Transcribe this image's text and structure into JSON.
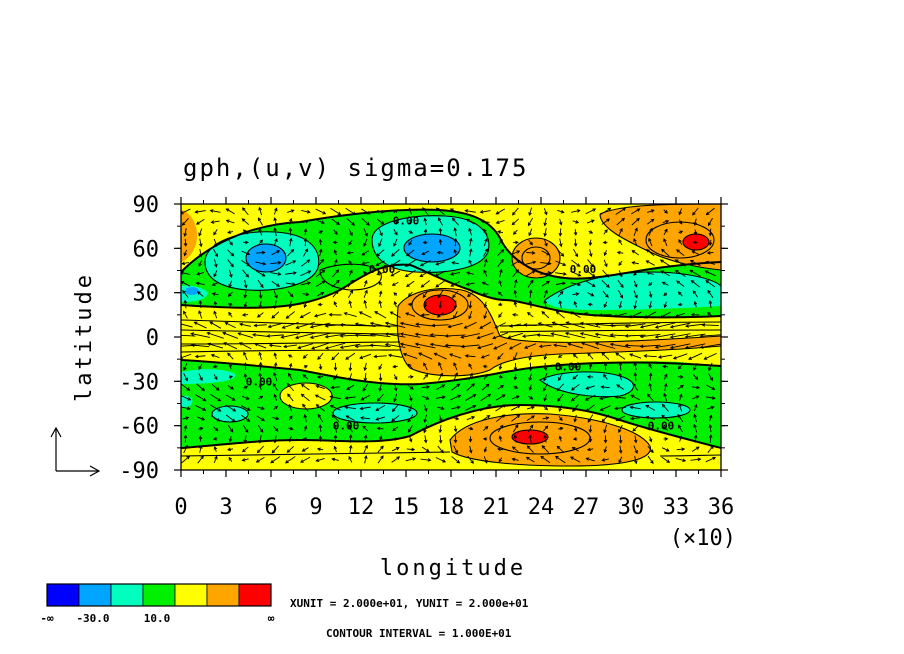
{
  "chart_data": {
    "type": "heatmap",
    "title": "gph,(u,v) sigma=0.175",
    "xlabel": "longitude",
    "ylabel": "latitude",
    "x_multiplier_label": "(×10)",
    "xticks": [
      0,
      3,
      6,
      9,
      12,
      15,
      18,
      21,
      24,
      27,
      30,
      33,
      36
    ],
    "yticks": [
      90,
      60,
      30,
      0,
      -30,
      -60,
      -90
    ],
    "xlim": [
      0,
      36
    ],
    "ylim": [
      -90,
      90
    ],
    "contour_labels": [
      {
        "text": "0.00",
        "lon": 150,
        "lat": 79
      },
      {
        "text": "0.00",
        "lon": 134,
        "lat": 46
      },
      {
        "text": "0.00",
        "lon": 268,
        "lat": 46
      },
      {
        "text": "0.00",
        "lon": 52,
        "lat": -30
      },
      {
        "text": "0.00",
        "lon": 110,
        "lat": -60
      },
      {
        "text": "0.00",
        "lon": 258,
        "lat": -20
      },
      {
        "text": "0.00",
        "lon": 320,
        "lat": -60
      }
    ],
    "colorbar": {
      "colors": [
        "#0000ff",
        "#00a5ff",
        "#00ffbe",
        "#00f000",
        "#ffff00",
        "#ffa500",
        "#ff0000"
      ],
      "tick_labels": [
        "-∞",
        "-30.0",
        "10.0",
        "∞"
      ]
    },
    "unit_text": "XUNIT = 2.000e+01, YUNIT = 2.000e+01",
    "contour_text": "CONTOUR INTERVAL = 1.000E+01"
  }
}
